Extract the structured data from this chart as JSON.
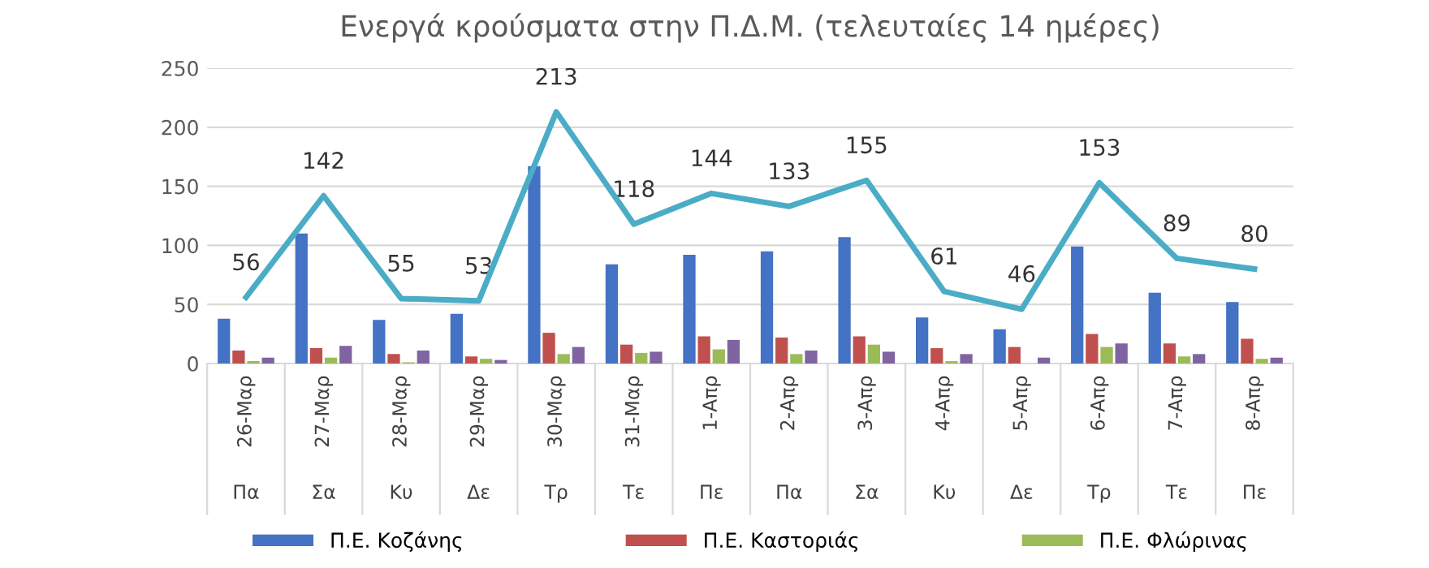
{
  "chart_data": {
    "type": "bar",
    "title": "Ενεργά κρούσματα στην Π.Δ.Μ. (τελευταίες 14 ημέρες)",
    "categories": [
      "26-Μαρ\nΠα",
      "27-Μαρ\nΣα",
      "28-Μαρ\nΚυ",
      "29-Μαρ\nΔε",
      "30-Μαρ\nΤρ",
      "31-Μαρ\nΤε",
      "1-Απρ\nΠε",
      "2-Απρ\nΠα",
      "3-Απρ\nΣα",
      "4-Απρ\nΚυ",
      "5-Απρ\nΔε",
      "6-Απρ\nΤρ",
      "7-Απρ\nΤε",
      "8-Απρ\nΠε"
    ],
    "series": [
      {
        "name": "Π.Ε. Κοζάνης",
        "color": "#4472c4",
        "values": [
          38,
          110,
          37,
          42,
          167,
          84,
          92,
          95,
          107,
          39,
          29,
          99,
          60,
          52
        ]
      },
      {
        "name": "Π.Ε. Καστοριάς",
        "color": "#c0504d",
        "values": [
          11,
          13,
          8,
          6,
          26,
          16,
          23,
          22,
          23,
          13,
          14,
          25,
          17,
          21
        ]
      },
      {
        "name": "Π.Ε. Φλώρινας",
        "color": "#9bbb59",
        "values": [
          2,
          5,
          1,
          4,
          8,
          9,
          12,
          8,
          16,
          2,
          0,
          14,
          6,
          4
        ]
      },
      {
        "color": "#8064a2",
        "values": [
          5,
          15,
          11,
          3,
          14,
          10,
          20,
          11,
          10,
          8,
          5,
          17,
          8,
          5
        ]
      },
      {
        "type": "line",
        "color": "#4bacc6",
        "values": [
          56,
          142,
          55,
          53,
          213,
          118,
          144,
          133,
          155,
          61,
          46,
          153,
          89,
          80
        ],
        "value_labels": [
          "56",
          "142",
          "55",
          "53",
          "213",
          "118",
          "144",
          "133",
          "155",
          "61",
          "46",
          "153",
          "89",
          "80"
        ]
      }
    ],
    "ylim": [
      0,
      250
    ],
    "yticks": [
      0,
      50,
      100,
      150,
      200,
      250
    ],
    "grid": "y",
    "legend": "bottom",
    "marker": "none"
  }
}
